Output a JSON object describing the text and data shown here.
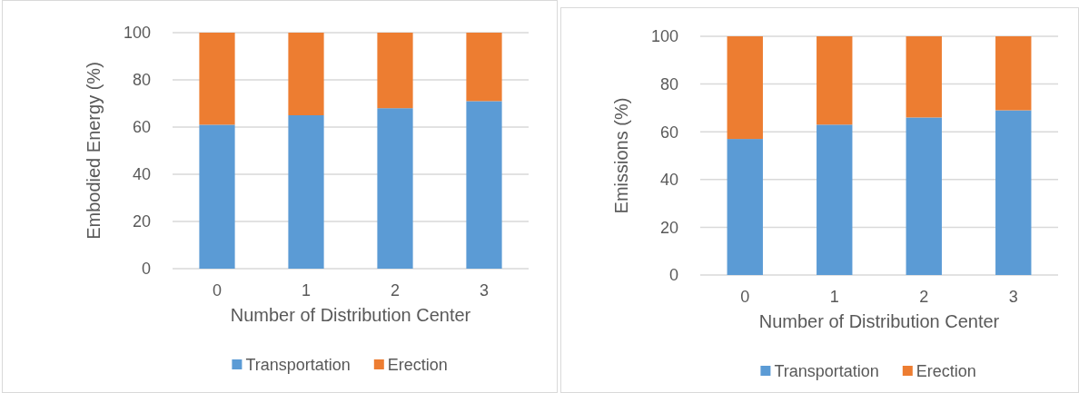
{
  "chart_data": [
    {
      "type": "bar",
      "stacked": true,
      "categories": [
        "0",
        "1",
        "2",
        "3"
      ],
      "xlabel": "Number of Distribution Center",
      "ylabel": "Embodied Energy (%)",
      "ylim": [
        0,
        100
      ],
      "yticks": [
        0,
        20,
        40,
        60,
        80,
        100
      ],
      "grid": "y",
      "legend": "bottom",
      "series": [
        {
          "name": "Transportation",
          "color": "#5b9bd5",
          "values": [
            61,
            65,
            68,
            71
          ]
        },
        {
          "name": "Erection",
          "color": "#ed7d31",
          "values": [
            39,
            35,
            32,
            29
          ]
        }
      ]
    },
    {
      "type": "bar",
      "stacked": true,
      "categories": [
        "0",
        "1",
        "2",
        "3"
      ],
      "xlabel": "Number of Distribution Center",
      "ylabel": "Emissions (%)",
      "ylim": [
        0,
        100
      ],
      "yticks": [
        0,
        20,
        40,
        60,
        80,
        100
      ],
      "grid": "y",
      "legend": "bottom",
      "series": [
        {
          "name": "Transportation",
          "color": "#5b9bd5",
          "values": [
            57,
            63,
            66,
            69
          ]
        },
        {
          "name": "Erection",
          "color": "#ed7d31",
          "values": [
            43,
            37,
            34,
            31
          ]
        }
      ]
    }
  ]
}
